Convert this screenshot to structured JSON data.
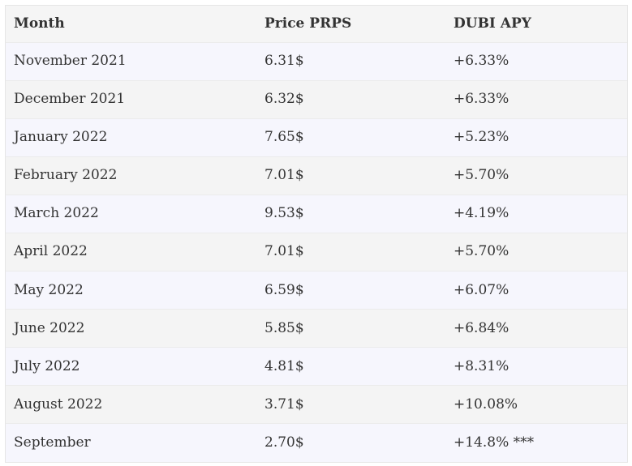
{
  "table": {
    "headers": [
      "Month",
      "Price PRPS",
      "DUBI APY"
    ],
    "rows": [
      [
        "November 2021",
        "6.31$",
        "+6.33%"
      ],
      [
        "December 2021",
        "6.32$",
        "+6.33%"
      ],
      [
        "January 2022",
        "7.65$",
        "+5.23%"
      ],
      [
        "February 2022",
        "7.01$",
        "+5.70%"
      ],
      [
        "March 2022",
        "9.53$",
        "+4.19%"
      ],
      [
        "April 2022",
        "7.01$",
        "+5.70%"
      ],
      [
        "May 2022",
        "6.59$",
        "+6.07%"
      ],
      [
        "June 2022",
        "5.85$",
        "+6.84%"
      ],
      [
        "July 2022",
        "4.81$",
        "+8.31%"
      ],
      [
        "August 2022",
        "3.71$",
        "+10.08%"
      ],
      [
        "September",
        "2.70$",
        "+14.8% ***"
      ]
    ]
  }
}
